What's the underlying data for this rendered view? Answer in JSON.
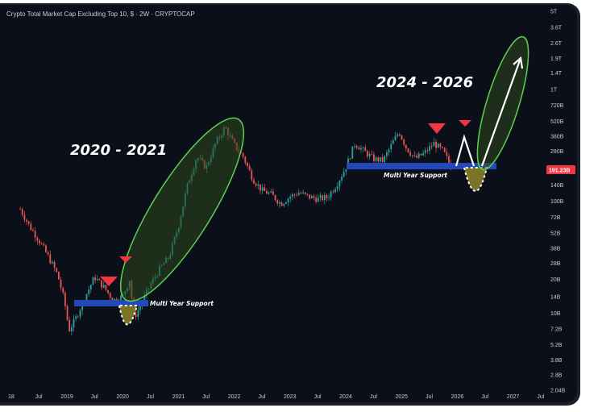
{
  "chart_data": {
    "type": "candlestick",
    "title": "Crypto Total Market Cap Excluding Top 10, $ · 2W · CRYPTOCAP",
    "y_scale": "log",
    "y_ticks": [
      "5T",
      "3.6T",
      "2.6T",
      "1.9T",
      "1.4T",
      "1T",
      "720B",
      "520B",
      "380B",
      "280B",
      "200B",
      "140B",
      "100B",
      "72B",
      "52B",
      "38B",
      "28B",
      "20B",
      "14B",
      "10B",
      "7.2B",
      "5.2B",
      "3.8B",
      "2.8B",
      "2.04B"
    ],
    "x_ticks": [
      "18",
      "Jul",
      "2019",
      "Jul",
      "2020",
      "Jul",
      "2021",
      "Jul",
      "2022",
      "Jul",
      "2023",
      "Jul",
      "2024",
      "Jul",
      "2025",
      "Jul",
      "2026",
      "Jul",
      "2027",
      "Jul"
    ],
    "current_price_label": "191.23B",
    "current_price": 191.23,
    "series_path": [
      [
        "2018-03-01",
        85
      ],
      [
        "2018-05-01",
        60
      ],
      [
        "2018-07-01",
        45
      ],
      [
        "2018-09-01",
        32
      ],
      [
        "2018-11-01",
        22
      ],
      [
        "2018-12-15",
        13
      ],
      [
        "2019-01-15",
        7
      ],
      [
        "2019-03-01",
        9
      ],
      [
        "2019-05-01",
        14
      ],
      [
        "2019-07-01",
        21
      ],
      [
        "2019-09-01",
        17
      ],
      [
        "2019-11-01",
        13
      ],
      [
        "2020-01-01",
        14
      ],
      [
        "2020-02-15",
        20
      ],
      [
        "2020-03-15",
        9
      ],
      [
        "2020-05-01",
        12
      ],
      [
        "2020-07-01",
        18
      ],
      [
        "2020-09-01",
        25
      ],
      [
        "2020-11-01",
        32
      ],
      [
        "2021-01-01",
        60
      ],
      [
        "2021-03-01",
        140
      ],
      [
        "2021-05-01",
        250
      ],
      [
        "2021-07-01",
        200
      ],
      [
        "2021-09-01",
        330
      ],
      [
        "2021-11-01",
        460
      ],
      [
        "2022-01-01",
        320
      ],
      [
        "2022-03-01",
        250
      ],
      [
        "2022-05-01",
        160
      ],
      [
        "2022-07-01",
        125
      ],
      [
        "2022-09-01",
        115
      ],
      [
        "2022-11-01",
        95
      ],
      [
        "2023-01-01",
        110
      ],
      [
        "2023-03-01",
        120
      ],
      [
        "2023-05-01",
        110
      ],
      [
        "2023-07-01",
        105
      ],
      [
        "2023-09-01",
        108
      ],
      [
        "2023-11-01",
        140
      ],
      [
        "2024-01-01",
        200
      ],
      [
        "2024-03-01",
        330
      ],
      [
        "2024-05-01",
        280
      ],
      [
        "2024-07-01",
        240
      ],
      [
        "2024-09-01",
        230
      ],
      [
        "2024-11-01",
        330
      ],
      [
        "2024-12-15",
        420
      ],
      [
        "2025-02-01",
        300
      ],
      [
        "2025-04-01",
        240
      ],
      [
        "2025-06-01",
        270
      ],
      [
        "2025-08-01",
        330
      ],
      [
        "2025-10-01",
        280
      ],
      [
        "2025-12-01",
        191.23
      ]
    ],
    "annotations": {
      "period_1": "2020 - 2021",
      "period_2": "2024 - 2026",
      "support_1": "Multi Year Support",
      "support_2": "Multi Year Support"
    },
    "colors": {
      "background": "#0b0f19",
      "up": "#26a69a",
      "down": "#ef5350",
      "support": "#2448b8",
      "ellipse_fill": "#2e4a1e",
      "ellipse_stroke": "#5fcf50",
      "dip_fill": "#7a7428",
      "marker": "#f23645",
      "price_tag": "#f23645"
    }
  }
}
